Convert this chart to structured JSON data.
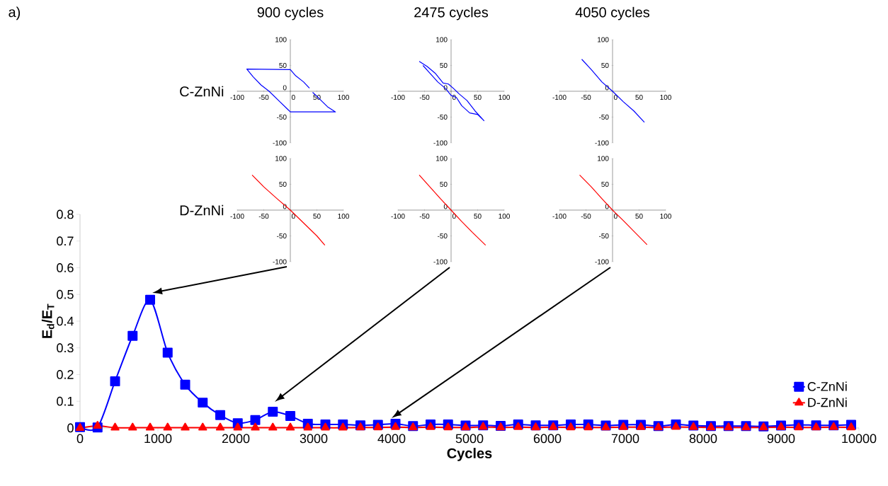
{
  "chart_data": [
    {
      "type": "line",
      "title": "900 cycles",
      "ylabel": "C-ZnNi",
      "xlim": [
        -100,
        100
      ],
      "ylim": [
        -100,
        100
      ],
      "xticks": [
        -100,
        -50,
        0,
        50,
        100
      ],
      "yticks": [
        -100,
        -50,
        0,
        50,
        100
      ],
      "series": [
        {
          "color": "#0000ff",
          "x": [
            42,
            55,
            70,
            85,
            0,
            -5,
            -20,
            -40,
            -55,
            -70,
            -82,
            0,
            10,
            25,
            36
          ],
          "values": [
            -2,
            -15,
            -30,
            -40,
            -40,
            -35,
            -20,
            0,
            12,
            28,
            43,
            42,
            30,
            18,
            6
          ]
        }
      ]
    },
    {
      "type": "line",
      "title": "2475 cycles",
      "xlim": [
        -100,
        100
      ],
      "ylim": [
        -100,
        100
      ],
      "xticks": [
        -100,
        -50,
        0,
        50,
        100
      ],
      "yticks": [
        -100,
        -50,
        0,
        50,
        100
      ],
      "series": [
        {
          "color": "#0000ff",
          "x": [
            -60,
            -45,
            -30,
            -15,
            -5,
            5,
            15,
            30,
            45,
            62,
            50,
            35,
            20,
            10,
            0,
            -10,
            -25,
            -40,
            -53
          ],
          "values": [
            58,
            48,
            35,
            16,
            14,
            5,
            -5,
            -18,
            -38,
            -57,
            -45,
            -42,
            -28,
            -12,
            -8,
            5,
            18,
            35,
            50
          ]
        }
      ]
    },
    {
      "type": "line",
      "title": "4050 cycles",
      "xlim": [
        -100,
        100
      ],
      "ylim": [
        -100,
        100
      ],
      "xticks": [
        -100,
        -50,
        0,
        50,
        100
      ],
      "yticks": [
        -100,
        -50,
        0,
        50,
        100
      ],
      "series": [
        {
          "color": "#0000ff",
          "x": [
            -58,
            -40,
            -20,
            0,
            20,
            40,
            60
          ],
          "values": [
            62,
            42,
            18,
            0,
            -20,
            -38,
            -60
          ]
        }
      ]
    },
    {
      "type": "line",
      "ylabel": "D-ZnNi",
      "xlim": [
        -100,
        100
      ],
      "ylim": [
        -100,
        100
      ],
      "xticks": [
        -100,
        -50,
        0,
        50,
        100
      ],
      "yticks": [
        -100,
        -50,
        0,
        50,
        100
      ],
      "series": [
        {
          "color": "#ff0000",
          "x": [
            -72,
            -50,
            -25,
            0,
            25,
            50,
            65
          ],
          "values": [
            68,
            45,
            22,
            0,
            -25,
            -50,
            -68
          ]
        }
      ]
    },
    {
      "type": "line",
      "xlim": [
        -100,
        100
      ],
      "ylim": [
        -100,
        100
      ],
      "xticks": [
        -100,
        -50,
        0,
        50,
        100
      ],
      "yticks": [
        -100,
        -50,
        0,
        50,
        100
      ],
      "series": [
        {
          "color": "#ff0000",
          "x": [
            -60,
            -40,
            -20,
            0,
            20,
            40,
            65
          ],
          "values": [
            68,
            45,
            22,
            0,
            -22,
            -43,
            -68
          ]
        }
      ]
    },
    {
      "type": "line",
      "xlim": [
        -100,
        100
      ],
      "ylim": [
        -100,
        100
      ],
      "xticks": [
        -100,
        -50,
        0,
        50,
        100
      ],
      "yticks": [
        -100,
        -50,
        0,
        50,
        100
      ],
      "series": [
        {
          "color": "#ff0000",
          "x": [
            -62,
            -40,
            -20,
            0,
            20,
            40,
            65
          ],
          "values": [
            68,
            45,
            22,
            0,
            -20,
            -41,
            -67
          ]
        }
      ]
    },
    {
      "type": "line",
      "xlabel": "Cycles",
      "ylabel": "E$_{d}$/E$_{T}$",
      "annotations": [
        "a)"
      ],
      "legend": "bottom right",
      "xlim": [
        0,
        10000
      ],
      "ylim": [
        0,
        0.8
      ],
      "xticks": [
        0,
        1000,
        2000,
        3000,
        4000,
        5000,
        6000,
        7000,
        8000,
        9000,
        10000
      ],
      "yticks": [
        0,
        0.1,
        0.2,
        0.3,
        0.4,
        0.5,
        0.6,
        0.7,
        0.8
      ],
      "x": [
        0,
        225,
        450,
        675,
        900,
        1125,
        1350,
        1575,
        1800,
        2025,
        2250,
        2475,
        2700,
        2925,
        3150,
        3375,
        3600,
        3825,
        4050,
        4275,
        4500,
        4725,
        4950,
        5175,
        5400,
        5625,
        5850,
        6075,
        6300,
        6525,
        6750,
        6975,
        7200,
        7425,
        7650,
        7875,
        8100,
        8325,
        8550,
        8775,
        9000,
        9225,
        9450,
        9675,
        9900
      ],
      "series": [
        {
          "name": "C-ZnNi",
          "color": "#0000ff",
          "marker": "square",
          "values": [
            0.003,
            0.002,
            0.175,
            0.345,
            0.48,
            0.282,
            0.162,
            0.095,
            0.048,
            0.018,
            0.03,
            0.061,
            0.045,
            0.016,
            0.013,
            0.013,
            0.01,
            0.012,
            0.016,
            0.007,
            0.013,
            0.013,
            0.009,
            0.01,
            0.008,
            0.013,
            0.01,
            0.01,
            0.013,
            0.013,
            0.009,
            0.012,
            0.012,
            0.007,
            0.013,
            0.009,
            0.007,
            0.007,
            0.007,
            0.006,
            0.009,
            0.012,
            0.01,
            0.01,
            0.012
          ]
        },
        {
          "name": "D-ZnNi",
          "color": "#ff0000",
          "marker": "triangle",
          "values": [
            0,
            0.008,
            0.001,
            0.001,
            0.001,
            0.001,
            0.001,
            0.001,
            0.001,
            0.001,
            0.001,
            0.001,
            0.001,
            0.001,
            0.001,
            0.001,
            0.002,
            0.002,
            0.003,
            0.002,
            0.003,
            0.002,
            0.002,
            0.004,
            0.002,
            0.003,
            0.002,
            0.003,
            0.002,
            0.002,
            0.002,
            0.003,
            0.003,
            0.002,
            0.004,
            0.003,
            0.002,
            0.002,
            0.002,
            0.002,
            0.003,
            0.002,
            0.002,
            0.003,
            0.002
          ]
        }
      ]
    }
  ]
}
